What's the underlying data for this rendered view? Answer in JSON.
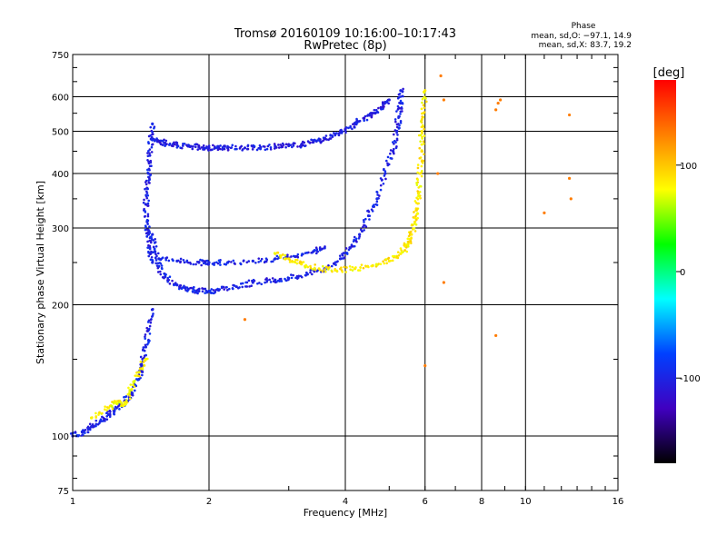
{
  "chart_data": {
    "type": "scatter",
    "title": "Tromsø 20160109 10:16:00–10:17:43",
    "subtitle": "RwPretec (8p)",
    "xlabel": "Frequency [MHz]",
    "ylabel": "Stationary phase Virtual Height [km]",
    "x_scale": "log",
    "y_scale": "log",
    "xlim": [
      1,
      16
    ],
    "ylim": [
      75,
      750
    ],
    "x_ticks": [
      1,
      2,
      4,
      6,
      8,
      10,
      16
    ],
    "y_ticks": [
      75,
      100,
      200,
      300,
      400,
      500,
      600,
      750
    ],
    "grid": true,
    "phase_box": {
      "title": "Phase",
      "line_o": "mean, sd,O: −97.1, 14.9",
      "line_x": "mean, sd,X: 83.7, 19.2"
    },
    "colorbar": {
      "label": "[deg]",
      "range": [
        -180,
        180
      ],
      "ticks": [
        100,
        0,
        -100
      ],
      "placement": "right",
      "stops": [
        "#ff0000",
        "#ff8000",
        "#ffff00",
        "#00ff00",
        "#00ffff",
        "#0040ff",
        "#4000c0",
        "#000000"
      ]
    },
    "series": [
      {
        "trace": "o-lower",
        "phase": -100,
        "x": [
          1.5,
          1.52,
          1.55,
          1.6,
          1.7,
          1.8,
          1.9,
          2.0,
          2.1,
          2.3,
          2.5,
          2.8,
          3.0,
          3.3,
          3.6,
          3.9,
          4.1,
          4.3,
          4.5,
          4.7,
          4.9,
          5.1,
          5.2,
          5.25,
          5.3,
          5.3
        ],
        "y": [
          290,
          265,
          245,
          232,
          222,
          217,
          215,
          215,
          216,
          220,
          225,
          228,
          230,
          235,
          242,
          255,
          270,
          290,
          320,
          350,
          400,
          450,
          500,
          540,
          580,
          620
        ]
      },
      {
        "trace": "o-upper",
        "phase": -105,
        "x": [
          1.5,
          1.55,
          1.6,
          1.7,
          1.8,
          1.9,
          2.0,
          2.1,
          2.2,
          2.4,
          2.6,
          2.8,
          3.0,
          3.2,
          3.4,
          3.6,
          3.8,
          4.0,
          4.2,
          4.4,
          4.6,
          4.8,
          5.0
        ],
        "y": [
          480,
          475,
          470,
          465,
          462,
          460,
          458,
          458,
          458,
          458,
          459,
          461,
          463,
          466,
          472,
          480,
          492,
          505,
          520,
          535,
          550,
          565,
          590
        ]
      },
      {
        "trace": "o-leading-edge",
        "phase": -100,
        "x": [
          1.5,
          1.49,
          1.48,
          1.47,
          1.46,
          1.45,
          1.46,
          1.47,
          1.48,
          1.5
        ],
        "y": [
          520,
          480,
          440,
          400,
          370,
          340,
          310,
          290,
          270,
          250
        ]
      },
      {
        "trace": "o-middle",
        "phase": -100,
        "x": [
          1.55,
          1.7,
          1.9,
          2.0,
          2.2,
          2.5,
          2.8,
          3.1,
          3.4,
          3.6
        ],
        "y": [
          255,
          252,
          250,
          250,
          250,
          252,
          255,
          258,
          265,
          270
        ]
      },
      {
        "trace": "x-trace",
        "phase": 85,
        "x": [
          2.8,
          3.0,
          3.2,
          3.5,
          3.8,
          4.2,
          4.6,
          5.0,
          5.3,
          5.5,
          5.6,
          5.7,
          5.75,
          5.8,
          5.85,
          5.9,
          5.9,
          5.95,
          6.0
        ],
        "y": [
          262,
          255,
          248,
          242,
          240,
          242,
          246,
          252,
          262,
          275,
          290,
          310,
          330,
          360,
          400,
          450,
          500,
          550,
          620
        ]
      },
      {
        "trace": "e-region",
        "phase": -100,
        "x": [
          1.0,
          1.05,
          1.1,
          1.15,
          1.2,
          1.25,
          1.3,
          1.35,
          1.4,
          1.42,
          1.45,
          1.47,
          1.5
        ],
        "y": [
          100,
          102,
          105,
          108,
          112,
          116,
          120,
          125,
          135,
          145,
          160,
          175,
          195
        ]
      },
      {
        "trace": "e-region-mixed",
        "phase": 80,
        "x": [
          1.1,
          1.2,
          1.25,
          1.3,
          1.35,
          1.4,
          1.45
        ],
        "y": [
          110,
          116,
          120,
          118,
          128,
          140,
          150
        ]
      },
      {
        "trace": "sporadic",
        "phase": 130,
        "x": [
          6.5,
          6.6,
          8.6,
          8.7,
          8.8,
          11.0,
          12.5,
          12.5,
          12.6,
          6.4,
          6.6,
          2.4,
          6.0,
          8.6
        ],
        "y": [
          670,
          590,
          560,
          580,
          590,
          325,
          545,
          390,
          350,
          400,
          225,
          185,
          145,
          170
        ]
      }
    ]
  }
}
